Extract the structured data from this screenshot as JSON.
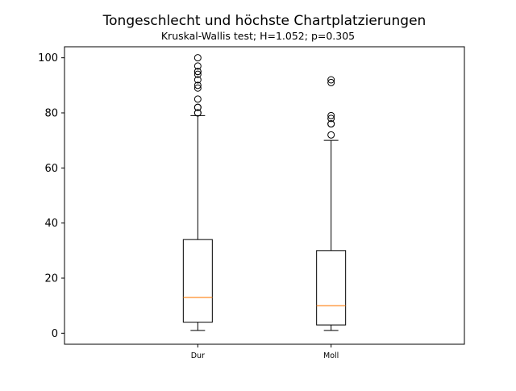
{
  "chart_data": {
    "type": "boxplot",
    "title": "Tongeschlecht und höchste Chartplatzierungen",
    "subtitle": "Kruskal-Wallis test; H=1.052; p=0.305",
    "xlabel": "",
    "ylabel": "",
    "categories": [
      "Dur",
      "Moll"
    ],
    "ylim": [
      -4,
      104
    ],
    "yticks": [
      0,
      20,
      40,
      60,
      80,
      100
    ],
    "grid": false,
    "boxes": [
      {
        "category": "Dur",
        "whisker_low": 1,
        "q1": 4,
        "median": 13,
        "q3": 34,
        "whisker_high": 79,
        "outliers": [
          80,
          80,
          82,
          82,
          85,
          89,
          90,
          92,
          94,
          95,
          95,
          97,
          100
        ]
      },
      {
        "category": "Moll",
        "whisker_low": 1,
        "q1": 3,
        "median": 10,
        "q3": 30,
        "whisker_high": 70,
        "outliers": [
          72,
          76,
          76,
          78,
          79,
          91,
          92
        ]
      }
    ],
    "colors": {
      "box": "#000000",
      "median": "#ff7f0e",
      "outlier": "#000000"
    }
  }
}
